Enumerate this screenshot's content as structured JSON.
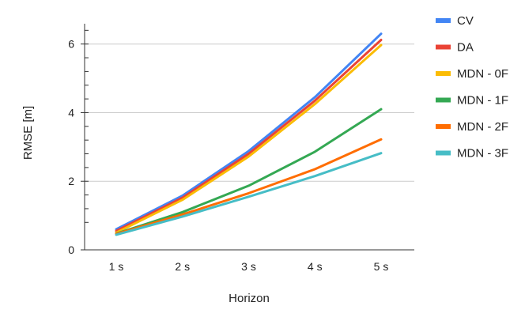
{
  "chart_data": {
    "type": "line",
    "xlabel": "Horizon",
    "ylabel": "RMSE [m]",
    "categories": [
      "1 s",
      "2 s",
      "3 s",
      "4 s",
      "5 s"
    ],
    "ylim": [
      0,
      6.5
    ],
    "yticks": [
      0,
      2,
      4,
      6
    ],
    "yticks_minor": [
      0.8,
      1.2,
      1.6,
      2.4,
      2.8,
      3.2,
      3.6,
      4.4,
      4.8,
      5.2,
      5.6,
      6.4
    ],
    "grid": true,
    "legend_position": "right",
    "series": [
      {
        "name": "CV",
        "color": "#4285f4",
        "values": [
          0.6,
          1.58,
          2.88,
          4.45,
          6.3
        ]
      },
      {
        "name": "DA",
        "color": "#ea4335",
        "values": [
          0.55,
          1.52,
          2.8,
          4.35,
          6.12
        ]
      },
      {
        "name": "MDN - 0F",
        "color": "#fbbc04",
        "values": [
          0.5,
          1.46,
          2.72,
          4.25,
          5.97
        ]
      },
      {
        "name": "MDN - 1F",
        "color": "#34a853",
        "values": [
          0.47,
          1.1,
          1.87,
          2.86,
          4.1
        ]
      },
      {
        "name": "MDN - 2F",
        "color": "#ff6d01",
        "values": [
          0.46,
          1.03,
          1.65,
          2.35,
          3.22
        ]
      },
      {
        "name": "MDN - 3F",
        "color": "#46bdc6",
        "values": [
          0.44,
          0.97,
          1.55,
          2.15,
          2.82
        ]
      }
    ]
  }
}
